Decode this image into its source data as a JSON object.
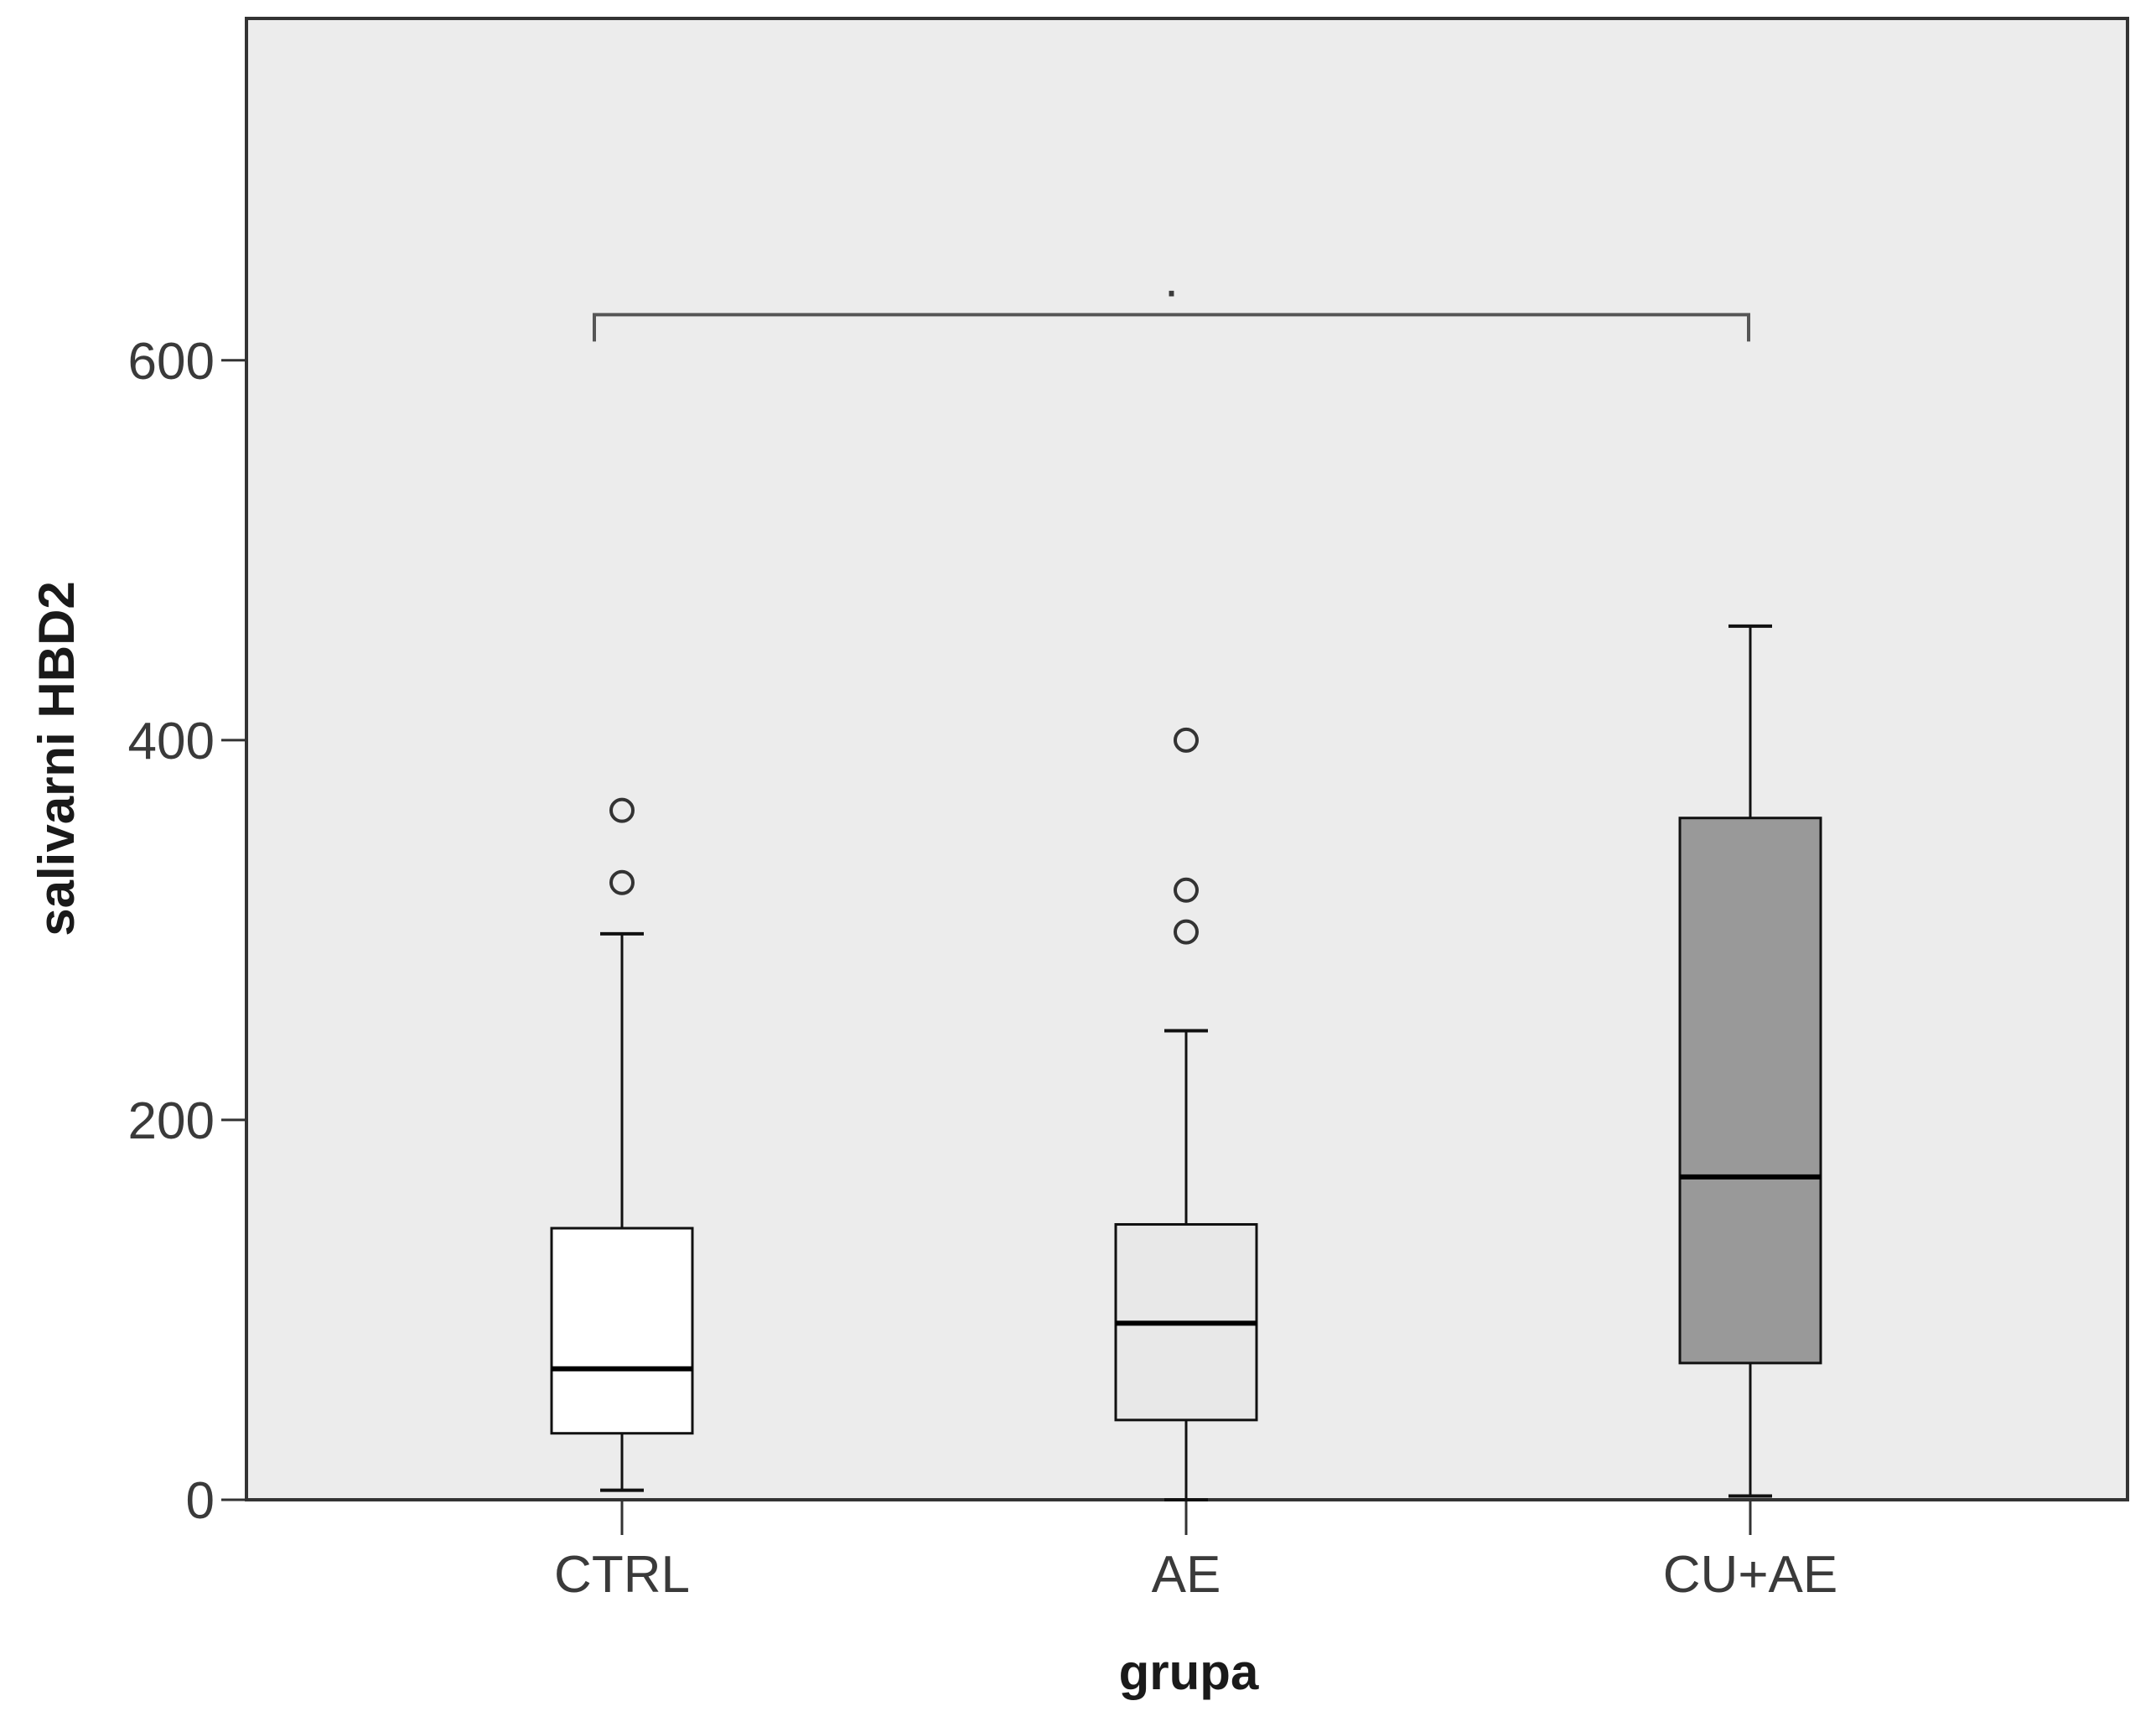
{
  "chart_data": {
    "type": "boxplot",
    "title": "",
    "xlabel": "grupa",
    "ylabel": "salivarni HBD2",
    "ylim": [
      0,
      780
    ],
    "yticks": [
      0,
      200,
      400,
      600
    ],
    "grid": false,
    "legend": "none",
    "categories": [
      "CTRL",
      "AE",
      "CU+AE"
    ],
    "boxes": [
      {
        "category": "CTRL",
        "min": 5,
        "q1": 35,
        "median": 69,
        "q3": 143,
        "max": 298,
        "outliers": [
          363,
          325
        ],
        "fill": "#ffffff"
      },
      {
        "category": "AE",
        "min": 0,
        "q1": 42,
        "median": 93,
        "q3": 145,
        "max": 247,
        "outliers": [
          400,
          321,
          299
        ],
        "fill": "#e8e8e8"
      },
      {
        "category": "CU+AE",
        "min": 2,
        "q1": 72,
        "median": 170,
        "q3": 359,
        "max": 460,
        "outliers": [],
        "fill": "#999999"
      }
    ],
    "annotation": {
      "from": "CTRL",
      "to": "CU+AE",
      "y": 624,
      "label": "."
    },
    "colors": {
      "plot_background": "#ececec",
      "axis": "#333333",
      "bracket": "#555555"
    }
  }
}
